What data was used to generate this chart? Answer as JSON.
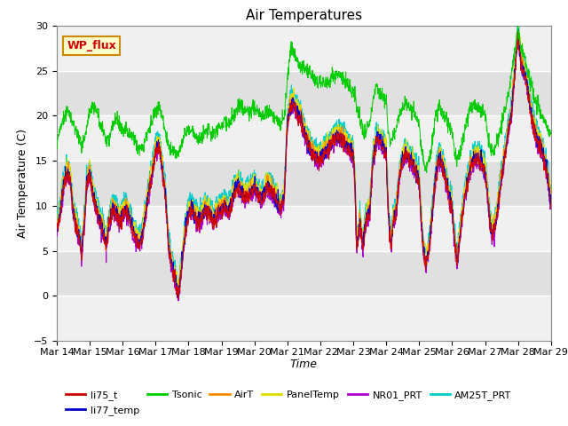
{
  "title": "Air Temperatures",
  "xlabel": "Time",
  "ylabel": "Air Temperature (C)",
  "ylim": [
    -5,
    30
  ],
  "date_labels": [
    "Mar 14",
    "Mar 15",
    "Mar 16",
    "Mar 17",
    "Mar 18",
    "Mar 19",
    "Mar 20",
    "Mar 21",
    "Mar 22",
    "Mar 23",
    "Mar 24",
    "Mar 25",
    "Mar 26",
    "Mar 27",
    "Mar 28",
    "Mar 29"
  ],
  "series_colors": {
    "li75_t": "#cc0000",
    "li77_temp": "#0000cc",
    "Tsonic": "#00cc00",
    "AirT": "#ff8800",
    "PanelTemp": "#dddd00",
    "NR01_PRT": "#aa00cc",
    "AM25T_PRT": "#00cccc"
  },
  "site_label": "WP_flux",
  "site_label_color": "#cc0000",
  "site_label_bg": "#ffffcc",
  "site_label_border": "#cc8800",
  "bg_color": "#e8e8e8",
  "grid_color": "#ffffff",
  "title_fontsize": 11,
  "axis_fontsize": 9,
  "tick_fontsize": 8,
  "legend_fontsize": 8,
  "base_keypoints": [
    [
      0.0,
      7.0
    ],
    [
      0.1,
      9.0
    ],
    [
      0.2,
      12.0
    ],
    [
      0.3,
      13.5
    ],
    [
      0.4,
      13.0
    ],
    [
      0.5,
      9.0
    ],
    [
      0.6,
      7.5
    ],
    [
      0.7,
      6.0
    ],
    [
      0.75,
      4.5
    ],
    [
      0.85,
      8.5
    ],
    [
      0.9,
      12.0
    ],
    [
      1.0,
      13.5
    ],
    [
      1.1,
      11.0
    ],
    [
      1.2,
      9.5
    ],
    [
      1.3,
      8.0
    ],
    [
      1.4,
      7.0
    ],
    [
      1.5,
      5.5
    ],
    [
      1.6,
      8.0
    ],
    [
      1.7,
      9.5
    ],
    [
      1.8,
      9.0
    ],
    [
      1.9,
      8.0
    ],
    [
      2.0,
      9.0
    ],
    [
      2.1,
      9.5
    ],
    [
      2.2,
      8.5
    ],
    [
      2.3,
      7.0
    ],
    [
      2.4,
      6.0
    ],
    [
      2.5,
      5.5
    ],
    [
      2.6,
      6.5
    ],
    [
      2.7,
      9.0
    ],
    [
      2.8,
      11.5
    ],
    [
      2.9,
      13.5
    ],
    [
      3.0,
      16.0
    ],
    [
      3.1,
      16.5
    ],
    [
      3.2,
      14.0
    ],
    [
      3.3,
      11.0
    ],
    [
      3.35,
      8.0
    ],
    [
      3.4,
      5.0
    ],
    [
      3.5,
      3.0
    ],
    [
      3.6,
      1.5
    ],
    [
      3.65,
      0.5
    ],
    [
      3.7,
      0.0
    ],
    [
      3.8,
      3.5
    ],
    [
      3.9,
      7.0
    ],
    [
      4.0,
      9.0
    ],
    [
      4.1,
      9.5
    ],
    [
      4.2,
      8.5
    ],
    [
      4.3,
      8.0
    ],
    [
      4.4,
      8.5
    ],
    [
      4.5,
      9.5
    ],
    [
      4.6,
      9.0
    ],
    [
      4.7,
      8.5
    ],
    [
      4.75,
      8.0
    ],
    [
      4.8,
      8.5
    ],
    [
      4.9,
      9.0
    ],
    [
      5.0,
      9.5
    ],
    [
      5.1,
      10.0
    ],
    [
      5.15,
      9.5
    ],
    [
      5.2,
      9.0
    ],
    [
      5.3,
      10.0
    ],
    [
      5.4,
      11.5
    ],
    [
      5.5,
      12.0
    ],
    [
      5.6,
      11.5
    ],
    [
      5.65,
      11.0
    ],
    [
      5.7,
      10.5
    ],
    [
      5.8,
      11.0
    ],
    [
      5.9,
      11.5
    ],
    [
      6.0,
      12.0
    ],
    [
      6.05,
      11.5
    ],
    [
      6.1,
      11.0
    ],
    [
      6.2,
      10.5
    ],
    [
      6.3,
      11.0
    ],
    [
      6.4,
      12.0
    ],
    [
      6.5,
      11.5
    ],
    [
      6.6,
      11.0
    ],
    [
      6.7,
      10.0
    ],
    [
      6.8,
      9.5
    ],
    [
      6.9,
      10.5
    ],
    [
      7.0,
      19.0
    ],
    [
      7.1,
      21.0
    ],
    [
      7.2,
      21.0
    ],
    [
      7.3,
      20.0
    ],
    [
      7.4,
      19.5
    ],
    [
      7.5,
      18.0
    ],
    [
      7.6,
      17.0
    ],
    [
      7.7,
      16.0
    ],
    [
      7.8,
      15.5
    ],
    [
      7.9,
      15.0
    ],
    [
      8.0,
      15.0
    ],
    [
      8.1,
      15.5
    ],
    [
      8.2,
      16.0
    ],
    [
      8.3,
      16.5
    ],
    [
      8.4,
      17.0
    ],
    [
      8.5,
      17.5
    ],
    [
      8.6,
      17.5
    ],
    [
      8.7,
      17.0
    ],
    [
      8.8,
      16.5
    ],
    [
      8.9,
      16.0
    ],
    [
      9.0,
      15.5
    ],
    [
      9.05,
      12.5
    ],
    [
      9.1,
      5.0
    ],
    [
      9.2,
      8.0
    ],
    [
      9.3,
      5.0
    ],
    [
      9.35,
      7.5
    ],
    [
      9.4,
      8.5
    ],
    [
      9.5,
      9.0
    ],
    [
      9.6,
      15.0
    ],
    [
      9.7,
      17.0
    ],
    [
      9.75,
      17.5
    ],
    [
      9.8,
      17.0
    ],
    [
      9.9,
      16.5
    ],
    [
      10.0,
      15.5
    ],
    [
      10.05,
      10.0
    ],
    [
      10.1,
      7.0
    ],
    [
      10.15,
      5.5
    ],
    [
      10.2,
      8.0
    ],
    [
      10.3,
      9.0
    ],
    [
      10.4,
      13.0
    ],
    [
      10.5,
      15.0
    ],
    [
      10.6,
      15.5
    ],
    [
      10.7,
      15.0
    ],
    [
      10.8,
      14.5
    ],
    [
      10.9,
      13.5
    ],
    [
      11.0,
      12.5
    ],
    [
      11.05,
      9.0
    ],
    [
      11.1,
      6.0
    ],
    [
      11.15,
      4.5
    ],
    [
      11.2,
      3.0
    ],
    [
      11.3,
      5.0
    ],
    [
      11.4,
      9.0
    ],
    [
      11.5,
      13.0
    ],
    [
      11.6,
      15.0
    ],
    [
      11.7,
      14.5
    ],
    [
      11.8,
      13.0
    ],
    [
      11.9,
      11.0
    ],
    [
      12.0,
      9.5
    ],
    [
      12.05,
      7.0
    ],
    [
      12.1,
      5.0
    ],
    [
      12.15,
      3.5
    ],
    [
      12.2,
      5.0
    ],
    [
      12.3,
      8.5
    ],
    [
      12.4,
      11.0
    ],
    [
      12.5,
      13.0
    ],
    [
      12.6,
      14.5
    ],
    [
      12.7,
      15.0
    ],
    [
      12.8,
      15.0
    ],
    [
      12.9,
      14.5
    ],
    [
      13.0,
      13.5
    ],
    [
      13.05,
      12.0
    ],
    [
      13.1,
      10.0
    ],
    [
      13.15,
      8.0
    ],
    [
      13.2,
      6.5
    ],
    [
      13.3,
      7.5
    ],
    [
      13.4,
      10.0
    ],
    [
      13.5,
      13.0
    ],
    [
      13.6,
      15.5
    ],
    [
      13.7,
      18.0
    ],
    [
      13.8,
      20.0
    ],
    [
      13.9,
      24.5
    ],
    [
      14.0,
      29.0
    ],
    [
      14.05,
      27.0
    ],
    [
      14.1,
      25.5
    ],
    [
      14.2,
      24.5
    ],
    [
      14.3,
      22.5
    ],
    [
      14.4,
      20.0
    ],
    [
      14.5,
      18.0
    ],
    [
      14.6,
      17.0
    ],
    [
      14.7,
      16.0
    ],
    [
      14.8,
      15.0
    ],
    [
      14.9,
      13.0
    ],
    [
      15.0,
      10.0
    ]
  ],
  "tsonic_keypoints": [
    [
      0.0,
      17.0
    ],
    [
      0.1,
      18.5
    ],
    [
      0.2,
      19.5
    ],
    [
      0.3,
      20.5
    ],
    [
      0.4,
      20.0
    ],
    [
      0.5,
      19.0
    ],
    [
      0.6,
      18.0
    ],
    [
      0.7,
      17.5
    ],
    [
      0.75,
      16.5
    ],
    [
      0.85,
      17.5
    ],
    [
      0.9,
      18.5
    ],
    [
      1.0,
      20.5
    ],
    [
      1.1,
      21.0
    ],
    [
      1.15,
      21.0
    ],
    [
      1.2,
      20.5
    ],
    [
      1.3,
      19.5
    ],
    [
      1.4,
      18.5
    ],
    [
      1.5,
      17.0
    ],
    [
      1.6,
      17.5
    ],
    [
      1.7,
      19.0
    ],
    [
      1.8,
      19.5
    ],
    [
      1.9,
      19.0
    ],
    [
      2.0,
      18.5
    ],
    [
      2.1,
      18.5
    ],
    [
      2.2,
      18.0
    ],
    [
      2.3,
      17.5
    ],
    [
      2.4,
      17.0
    ],
    [
      2.5,
      16.5
    ],
    [
      2.6,
      16.5
    ],
    [
      2.7,
      17.5
    ],
    [
      2.8,
      18.5
    ],
    [
      2.9,
      19.5
    ],
    [
      3.0,
      20.5
    ],
    [
      3.1,
      21.0
    ],
    [
      3.2,
      20.0
    ],
    [
      3.3,
      18.0
    ],
    [
      3.4,
      16.5
    ],
    [
      3.5,
      16.0
    ],
    [
      3.6,
      16.0
    ],
    [
      3.65,
      15.5
    ],
    [
      3.7,
      16.0
    ],
    [
      3.8,
      17.0
    ],
    [
      3.9,
      18.0
    ],
    [
      4.0,
      18.5
    ],
    [
      4.1,
      18.5
    ],
    [
      4.2,
      18.0
    ],
    [
      4.3,
      17.5
    ],
    [
      4.4,
      17.5
    ],
    [
      4.5,
      18.0
    ],
    [
      4.6,
      18.5
    ],
    [
      4.7,
      18.0
    ],
    [
      4.8,
      18.0
    ],
    [
      4.9,
      18.5
    ],
    [
      5.0,
      19.0
    ],
    [
      5.1,
      19.5
    ],
    [
      5.2,
      19.0
    ],
    [
      5.3,
      19.5
    ],
    [
      5.4,
      20.0
    ],
    [
      5.5,
      21.0
    ],
    [
      5.6,
      21.0
    ],
    [
      5.7,
      20.5
    ],
    [
      5.8,
      20.5
    ],
    [
      5.9,
      20.5
    ],
    [
      6.0,
      21.0
    ],
    [
      6.1,
      20.5
    ],
    [
      6.2,
      20.0
    ],
    [
      6.3,
      20.0
    ],
    [
      6.4,
      20.5
    ],
    [
      6.5,
      20.5
    ],
    [
      6.6,
      20.0
    ],
    [
      6.7,
      19.5
    ],
    [
      6.8,
      19.0
    ],
    [
      6.9,
      20.0
    ],
    [
      7.0,
      24.0
    ],
    [
      7.1,
      27.5
    ],
    [
      7.2,
      27.0
    ],
    [
      7.3,
      26.0
    ],
    [
      7.4,
      25.5
    ],
    [
      7.5,
      25.5
    ],
    [
      7.6,
      25.0
    ],
    [
      7.7,
      24.5
    ],
    [
      7.8,
      24.0
    ],
    [
      7.9,
      23.5
    ],
    [
      8.0,
      23.5
    ],
    [
      8.1,
      23.5
    ],
    [
      8.2,
      23.5
    ],
    [
      8.3,
      24.0
    ],
    [
      8.4,
      24.5
    ],
    [
      8.5,
      24.5
    ],
    [
      8.6,
      24.5
    ],
    [
      8.7,
      24.0
    ],
    [
      8.8,
      23.5
    ],
    [
      8.9,
      23.0
    ],
    [
      9.0,
      22.5
    ],
    [
      9.05,
      22.0
    ],
    [
      9.1,
      21.0
    ],
    [
      9.2,
      19.5
    ],
    [
      9.3,
      18.5
    ],
    [
      9.35,
      18.0
    ],
    [
      9.4,
      18.5
    ],
    [
      9.5,
      19.0
    ],
    [
      9.6,
      22.0
    ],
    [
      9.7,
      23.0
    ],
    [
      9.75,
      23.0
    ],
    [
      9.8,
      22.5
    ],
    [
      9.9,
      22.0
    ],
    [
      10.0,
      21.5
    ],
    [
      10.05,
      19.0
    ],
    [
      10.1,
      17.5
    ],
    [
      10.15,
      17.0
    ],
    [
      10.2,
      18.0
    ],
    [
      10.3,
      18.5
    ],
    [
      10.4,
      20.0
    ],
    [
      10.5,
      21.0
    ],
    [
      10.6,
      21.5
    ],
    [
      10.7,
      21.0
    ],
    [
      10.8,
      20.5
    ],
    [
      10.9,
      20.0
    ],
    [
      11.0,
      19.0
    ],
    [
      11.05,
      17.0
    ],
    [
      11.1,
      15.5
    ],
    [
      11.15,
      14.5
    ],
    [
      11.2,
      14.0
    ],
    [
      11.3,
      15.0
    ],
    [
      11.4,
      17.0
    ],
    [
      11.5,
      20.0
    ],
    [
      11.6,
      21.0
    ],
    [
      11.7,
      20.5
    ],
    [
      11.8,
      20.0
    ],
    [
      11.9,
      19.0
    ],
    [
      12.0,
      18.0
    ],
    [
      12.05,
      16.5
    ],
    [
      12.1,
      15.5
    ],
    [
      12.15,
      15.0
    ],
    [
      12.2,
      15.5
    ],
    [
      12.3,
      17.0
    ],
    [
      12.4,
      18.5
    ],
    [
      12.5,
      20.0
    ],
    [
      12.6,
      21.0
    ],
    [
      12.7,
      21.0
    ],
    [
      12.8,
      21.0
    ],
    [
      12.9,
      20.5
    ],
    [
      13.0,
      20.0
    ],
    [
      13.05,
      19.0
    ],
    [
      13.1,
      17.5
    ],
    [
      13.15,
      16.5
    ],
    [
      13.2,
      16.0
    ],
    [
      13.3,
      16.5
    ],
    [
      13.4,
      17.5
    ],
    [
      13.5,
      19.0
    ],
    [
      13.6,
      20.5
    ],
    [
      13.7,
      22.0
    ],
    [
      13.8,
      24.5
    ],
    [
      13.9,
      27.0
    ],
    [
      14.0,
      29.5
    ],
    [
      14.05,
      28.5
    ],
    [
      14.1,
      27.5
    ],
    [
      14.2,
      26.5
    ],
    [
      14.3,
      25.0
    ],
    [
      14.4,
      23.5
    ],
    [
      14.5,
      22.0
    ],
    [
      14.6,
      21.0
    ],
    [
      14.7,
      20.0
    ],
    [
      14.8,
      19.5
    ],
    [
      14.9,
      18.5
    ],
    [
      15.0,
      18.0
    ]
  ]
}
